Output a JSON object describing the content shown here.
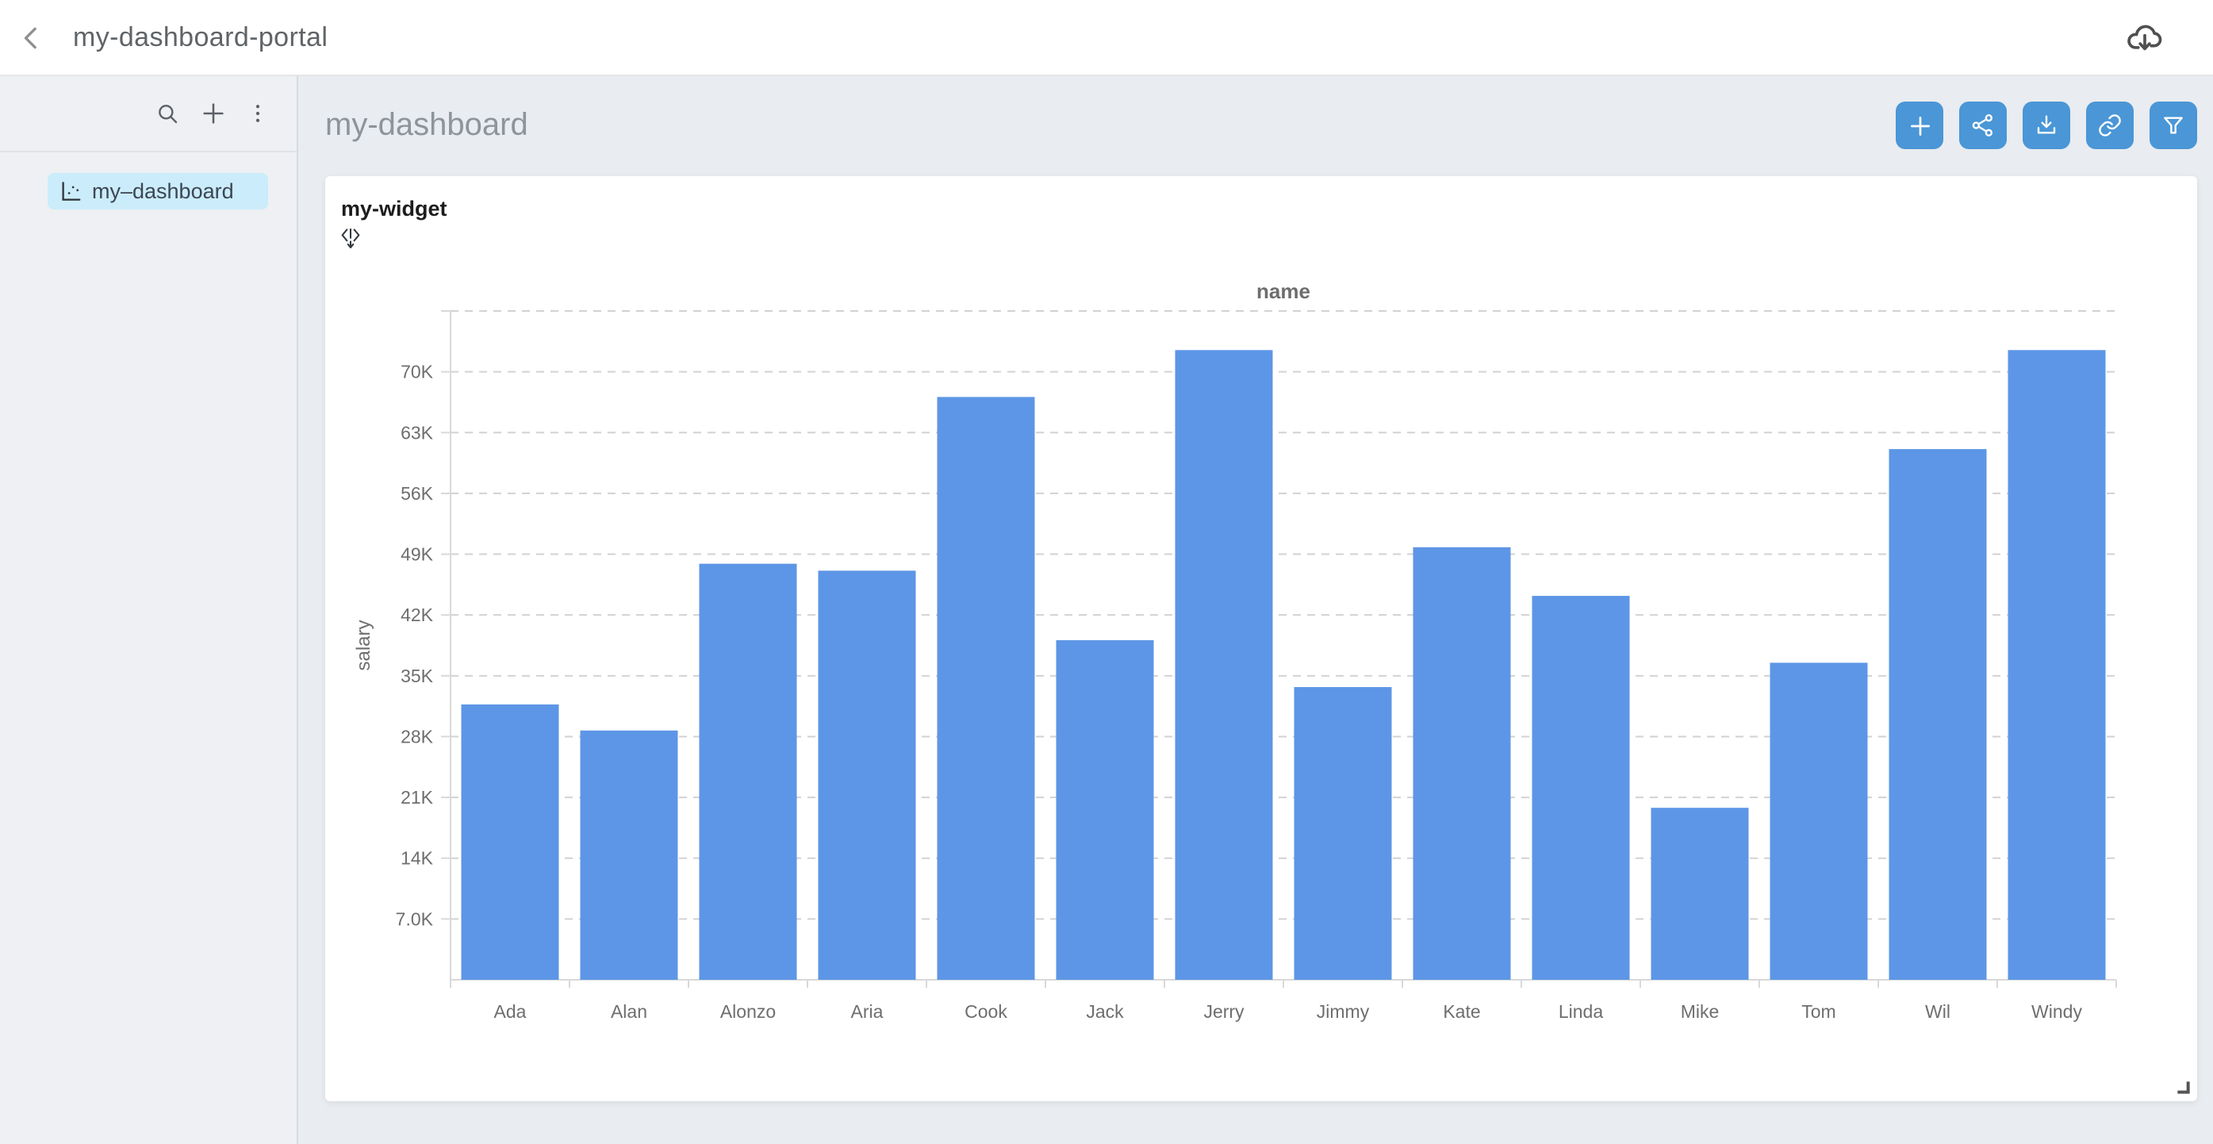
{
  "header": {
    "title": "my-dashboard-portal",
    "icons": {
      "back": "chevron-left-icon",
      "download": "cloud-download-icon"
    }
  },
  "sidebar": {
    "toolbar_icons": [
      "search-icon",
      "plus-icon",
      "kebab-menu-icon"
    ],
    "items": [
      {
        "label": "my–dashboard",
        "icon": "scatter-chart-icon",
        "selected": true
      }
    ]
  },
  "main": {
    "title": "my-dashboard",
    "toolbar_icons": [
      "plus-icon",
      "share-icon",
      "download-icon",
      "link-icon",
      "filter-icon"
    ]
  },
  "widget": {
    "title": "my-widget",
    "icon": "drill-expand-icon"
  },
  "colors": {
    "bar": "#5d96e6",
    "toolbar_button": "#4a96d6",
    "sidebar_selected_bg": "#cbecfa",
    "axis_text": "#6e6e6e",
    "grid_line": "#d2d2d2",
    "axis_line": "#d9d9d9"
  },
  "chart_data": {
    "type": "bar",
    "title": "name",
    "xlabel": "name",
    "ylabel": "salary",
    "categories": [
      "Ada",
      "Alan",
      "Alonzo",
      "Aria",
      "Cook",
      "Jack",
      "Jerry",
      "Jimmy",
      "Kate",
      "Linda",
      "Mike",
      "Tom",
      "Wil",
      "Windy"
    ],
    "values": [
      31700,
      28700,
      47900,
      47100,
      67100,
      39100,
      72500,
      33700,
      49800,
      44200,
      19800,
      36500,
      61100,
      72500
    ],
    "ylim": [
      0,
      77000
    ],
    "y_tick_interval": 7000,
    "y_tick_labels": [
      "7.0K",
      "14K",
      "21K",
      "28K",
      "35K",
      "42K",
      "49K",
      "56K",
      "63K",
      "70K"
    ],
    "grid": "horizontal-dashed",
    "legend": "none"
  }
}
